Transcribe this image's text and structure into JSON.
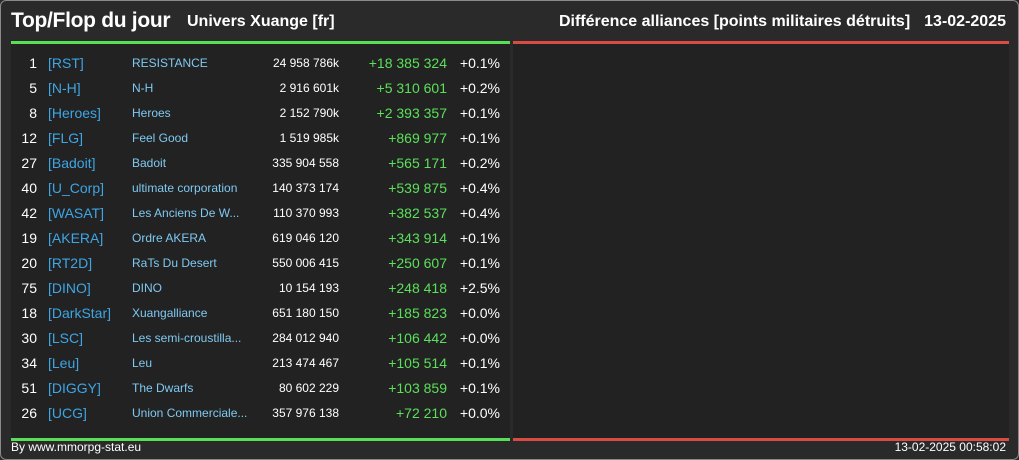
{
  "header": {
    "title": "Top/Flop du jour",
    "universe": "Univers Xuange [fr]",
    "subtitle": "Différence alliances [points militaires détruits]",
    "date": "13-02-2025"
  },
  "colors": {
    "top_accent": "#55e055",
    "flop_accent": "#d94b43",
    "tag": "#3ea6e5",
    "name": "#7fc9f2",
    "gain": "#5be05b"
  },
  "rows": [
    {
      "rank": "1",
      "tag": "[RST]",
      "name": "RESISTANCE",
      "points": "24 958 786k",
      "diff": "+18 385 324",
      "pct": "+0.1%"
    },
    {
      "rank": "5",
      "tag": "[N-H]",
      "name": "N-H",
      "points": "2 916 601k",
      "diff": "+5 310 601",
      "pct": "+0.2%"
    },
    {
      "rank": "8",
      "tag": "[Heroes]",
      "name": "Heroes",
      "points": "2 152 790k",
      "diff": "+2 393 357",
      "pct": "+0.1%"
    },
    {
      "rank": "12",
      "tag": "[FLG]",
      "name": "Feel Good",
      "points": "1 519 985k",
      "diff": "+869 977",
      "pct": "+0.1%"
    },
    {
      "rank": "27",
      "tag": "[Badoit]",
      "name": "Badoit",
      "points": "335 904 558",
      "diff": "+565 171",
      "pct": "+0.2%"
    },
    {
      "rank": "40",
      "tag": "[U_Corp]",
      "name": "ultimate corporation",
      "points": "140 373 174",
      "diff": "+539 875",
      "pct": "+0.4%"
    },
    {
      "rank": "42",
      "tag": "[WASAT]",
      "name": "Les Anciens De W...",
      "points": "110 370 993",
      "diff": "+382 537",
      "pct": "+0.4%"
    },
    {
      "rank": "19",
      "tag": "[AKERA]",
      "name": "Ordre AKERA",
      "points": "619 046 120",
      "diff": "+343 914",
      "pct": "+0.1%"
    },
    {
      "rank": "20",
      "tag": "[RT2D]",
      "name": "RaTs Du Desert",
      "points": "550 006 415",
      "diff": "+250 607",
      "pct": "+0.1%"
    },
    {
      "rank": "75",
      "tag": "[DINO]",
      "name": "DINO",
      "points": "10 154 193",
      "diff": "+248 418",
      "pct": "+2.5%"
    },
    {
      "rank": "18",
      "tag": "[DarkStar]",
      "name": "Xuangalliance",
      "points": "651 180 150",
      "diff": "+185 823",
      "pct": "+0.0%"
    },
    {
      "rank": "30",
      "tag": "[LSC]",
      "name": "Les semi-croustilla...",
      "points": "284 012 940",
      "diff": "+106 442",
      "pct": "+0.0%"
    },
    {
      "rank": "34",
      "tag": "[Leu]",
      "name": "Leu",
      "points": "213 474 467",
      "diff": "+105 514",
      "pct": "+0.1%"
    },
    {
      "rank": "51",
      "tag": "[DIGGY]",
      "name": "The Dwarfs",
      "points": "80 602 229",
      "diff": "+103 859",
      "pct": "+0.1%"
    },
    {
      "rank": "26",
      "tag": "[UCG]",
      "name": "Union Commerciale...",
      "points": "357 976 138",
      "diff": "+72 210",
      "pct": "+0.0%"
    }
  ],
  "footer": {
    "credit": "By www.mmorpg-stat.eu",
    "timestamp": "13-02-2025 00:58:02"
  }
}
